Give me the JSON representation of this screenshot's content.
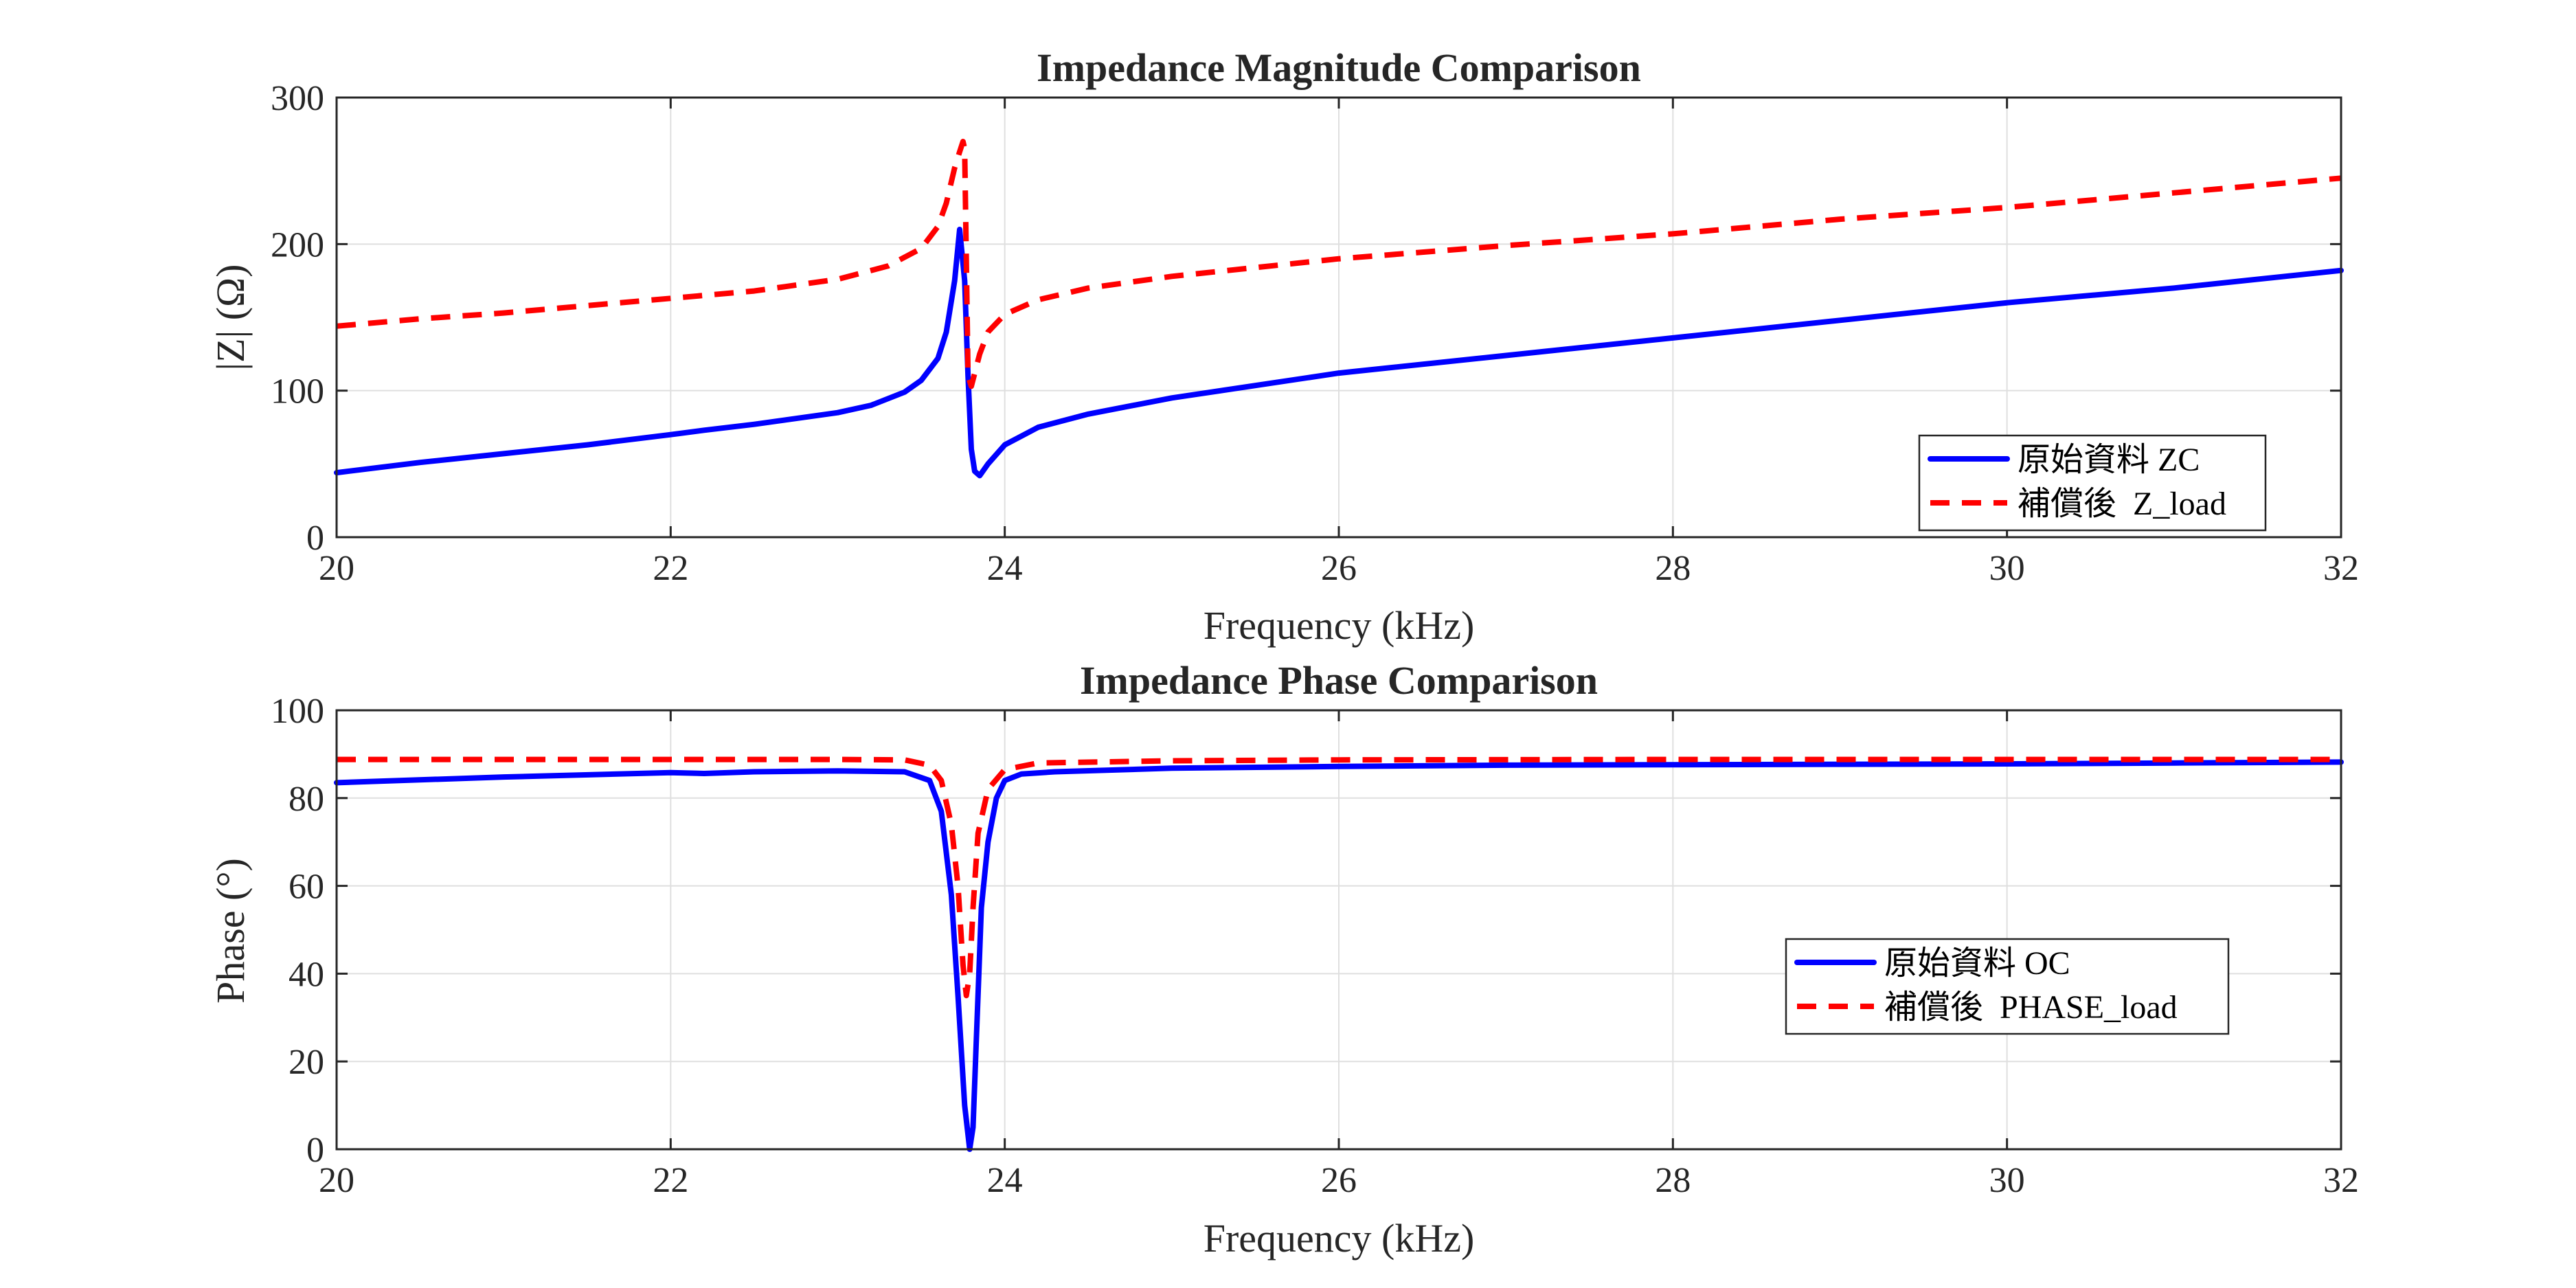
{
  "colors": {
    "blue": "#0000ff",
    "red": "#ff0000"
  },
  "chart_data": [
    {
      "type": "line",
      "title": "Impedance Magnitude Comparison",
      "xlabel": "Frequency (kHz)",
      "ylabel": "|Z| (Ω)",
      "xlim": [
        20,
        32
      ],
      "ylim": [
        0,
        300
      ],
      "xticks": [
        20,
        22,
        24,
        26,
        28,
        30,
        32
      ],
      "yticks": [
        0,
        100,
        200,
        300
      ],
      "grid": true,
      "legend_position": "bottom-right",
      "series": [
        {
          "name": "原始資料 ZC",
          "color": "#0000ff",
          "style": "solid",
          "x": [
            20,
            20.5,
            21,
            21.5,
            22,
            22.2,
            22.5,
            23,
            23.2,
            23.4,
            23.5,
            23.6,
            23.65,
            23.7,
            23.73,
            23.76,
            23.78,
            23.8,
            23.82,
            23.85,
            23.9,
            24,
            24.2,
            24.5,
            25,
            26,
            27,
            28,
            29,
            30,
            31,
            32
          ],
          "y": [
            44,
            51,
            57,
            63,
            70,
            73,
            77,
            85,
            90,
            99,
            107,
            122,
            140,
            175,
            210,
            175,
            110,
            60,
            45,
            42,
            50,
            63,
            75,
            84,
            95,
            112,
            124,
            136,
            148,
            160,
            170,
            182
          ]
        },
        {
          "name": "補償後  Z_load",
          "color": "#ff0000",
          "style": "dashed",
          "x": [
            20,
            20.5,
            21,
            21.5,
            22,
            22.5,
            23,
            23.3,
            23.5,
            23.6,
            23.65,
            23.7,
            23.73,
            23.75,
            23.76,
            23.77,
            23.78,
            23.8,
            23.85,
            23.9,
            24,
            24.2,
            24.5,
            25,
            26,
            27,
            28,
            29,
            30,
            31,
            32
          ],
          "y": [
            144,
            149,
            153,
            158,
            163,
            168,
            176,
            185,
            197,
            212,
            228,
            252,
            263,
            270,
            265,
            190,
            110,
            103,
            125,
            140,
            152,
            162,
            170,
            178,
            190,
            199,
            207,
            217,
            225,
            235,
            245
          ]
        }
      ]
    },
    {
      "type": "line",
      "title": "Impedance Phase Comparison",
      "xlabel": "Frequency (kHz)",
      "ylabel": "Phase (°)",
      "xlim": [
        20,
        32
      ],
      "ylim": [
        0,
        100
      ],
      "xticks": [
        20,
        22,
        24,
        26,
        28,
        30,
        32
      ],
      "yticks": [
        0,
        20,
        40,
        60,
        80,
        100
      ],
      "grid": true,
      "legend_position": "center-right",
      "series": [
        {
          "name": "原始資料 OC",
          "color": "#0000ff",
          "style": "solid",
          "x": [
            20,
            21,
            22,
            22.2,
            22.5,
            23,
            23.4,
            23.55,
            23.62,
            23.68,
            23.72,
            23.76,
            23.79,
            23.81,
            23.83,
            23.86,
            23.9,
            23.95,
            24,
            24.1,
            24.3,
            25,
            26,
            27,
            28,
            29,
            30,
            31,
            32
          ],
          "y": [
            83.5,
            84.8,
            85.8,
            85.6,
            86,
            86.2,
            86,
            84,
            77,
            58,
            35,
            10,
            0,
            5,
            25,
            55,
            70,
            80,
            84,
            85.5,
            86,
            86.8,
            87.2,
            87.5,
            87.6,
            87.7,
            87.8,
            88,
            88.2
          ]
        },
        {
          "name": "補償後  PHASE_load",
          "color": "#ff0000",
          "style": "dashed",
          "x": [
            20,
            21,
            22,
            23,
            23.4,
            23.55,
            23.62,
            23.68,
            23.72,
            23.75,
            23.77,
            23.79,
            23.81,
            23.84,
            23.9,
            24,
            24.2,
            25,
            26,
            28,
            30,
            32
          ],
          "y": [
            88.8,
            88.8,
            88.8,
            88.8,
            88.7,
            87.5,
            84,
            74,
            60,
            42,
            35,
            40,
            55,
            72,
            82,
            86.5,
            88,
            88.5,
            88.7,
            88.8,
            88.8,
            88.8
          ]
        }
      ]
    }
  ]
}
